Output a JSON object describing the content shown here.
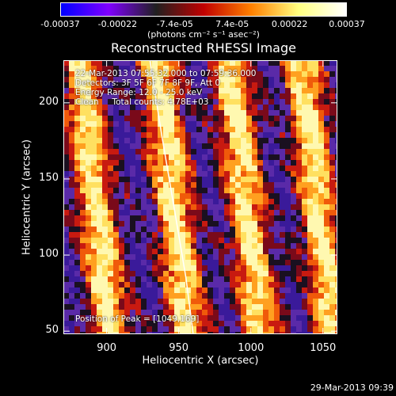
{
  "colorbar": {
    "tick_labels": [
      "-0.00037",
      "-0.00022",
      "-7.4e-05",
      "7.4e-05",
      "0.00022",
      "0.00037"
    ],
    "unit_label": "(photons cm⁻² s⁻¹ asec⁻²)",
    "colormap": [
      "#0000ff",
      "#8000ff",
      "#202020",
      "#c00000",
      "#ff8000",
      "#ffff80",
      "#ffffff"
    ]
  },
  "chart_data": {
    "type": "heatmap",
    "title": "Reconstructed RHESSI Image",
    "xlabel": "Heliocentric X (arcsec)",
    "ylabel": "Heliocentric Y (arcsec)",
    "xlim": [
      870,
      1060
    ],
    "ylim": [
      48,
      228
    ],
    "xticks": [
      900,
      950,
      1000,
      1050
    ],
    "yticks": [
      50,
      100,
      150,
      200
    ],
    "zlim": [
      -0.00037,
      0.00037
    ],
    "bright_bands_x": [
      892,
      946,
      996,
      1046
    ],
    "limb_curve": [
      [
        930,
        228
      ],
      [
        938,
        180
      ],
      [
        947,
        130
      ],
      [
        955,
        85
      ],
      [
        960,
        48
      ]
    ],
    "peak": [
      1049,
      169
    ]
  },
  "annotations": {
    "time_range": "22-Mar-2013 07:55:32.000 to 07:59:36.000",
    "detectors": "Detectors: 3F 5F 6F 7F 8F 9F, Att 0",
    "energy": "Energy Range: 12.0 - 25.0 keV",
    "clean": "Clean     Total counts: 4.78E+03",
    "peak": "Position of Peak = [1049,169]"
  },
  "footer": {
    "timestamp": "29-Mar-2013 09:39"
  }
}
